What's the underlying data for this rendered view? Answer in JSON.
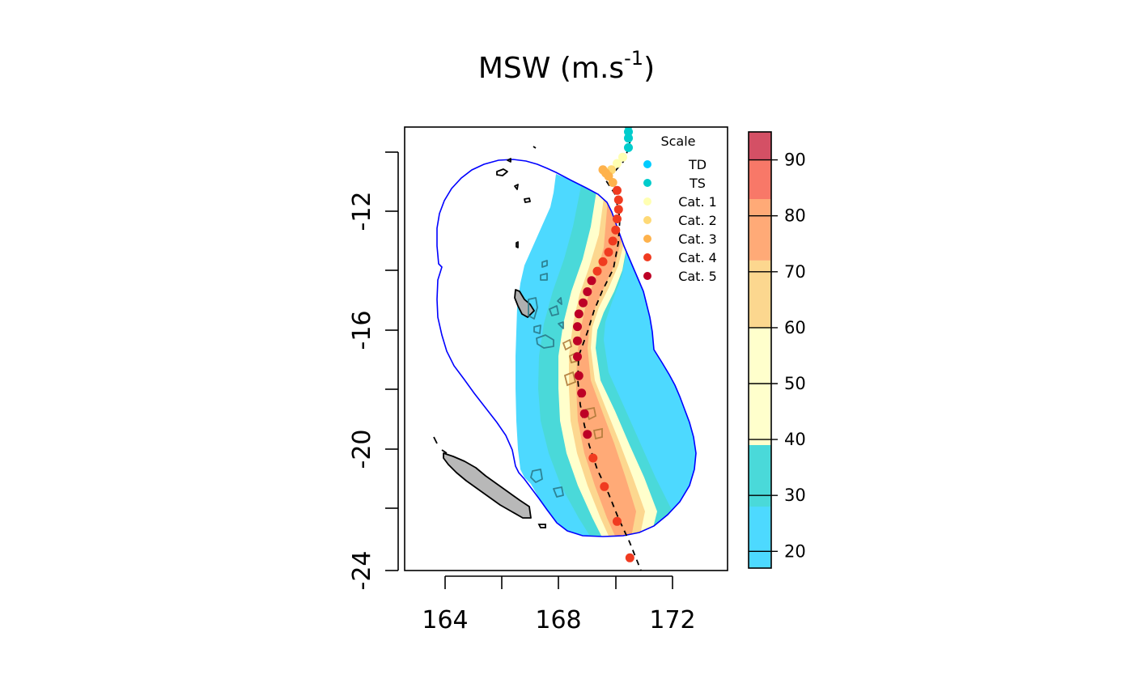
{
  "title": {
    "main": "MSW (m.s",
    "sup": "-1",
    "tail": ")"
  },
  "map": {
    "x_ticks": [
      "164",
      "168",
      "172"
    ],
    "y_ticks": [
      "-12",
      "-16",
      "-20",
      "-24"
    ],
    "xlim": [
      162.6,
      174.0
    ],
    "ylim": [
      -23.95,
      -9.95
    ]
  },
  "legend": {
    "title": "Scale",
    "items": [
      {
        "label": "TD",
        "color": "#00ccff"
      },
      {
        "label": "TS",
        "color": "#00cccc"
      },
      {
        "label": "Cat. 1",
        "color": "#ffffb2"
      },
      {
        "label": "Cat. 2",
        "color": "#fed976"
      },
      {
        "label": "Cat. 3",
        "color": "#feb24c"
      },
      {
        "label": "Cat. 4",
        "color": "#f03b20"
      },
      {
        "label": "Cat. 5",
        "color": "#bd0026"
      }
    ]
  },
  "colorbar": {
    "labels": [
      "20",
      "30",
      "40",
      "50",
      "60",
      "70",
      "80",
      "90"
    ],
    "range": [
      17,
      95
    ],
    "bands": [
      {
        "from": 17,
        "to": 28,
        "color": "#4dd9ff"
      },
      {
        "from": 28,
        "to": 39,
        "color": "#4ad9d9"
      },
      {
        "from": 39,
        "to": 60,
        "color": "#ffffcc"
      },
      {
        "from": 60,
        "to": 72,
        "color": "#fcd78f"
      },
      {
        "from": 72,
        "to": 83,
        "color": "#ffaa77"
      },
      {
        "from": 83,
        "to": 90,
        "color": "#f87868"
      },
      {
        "from": 90,
        "to": 95,
        "color": "#d45065"
      }
    ]
  },
  "track": [
    {
      "lon": 170.5,
      "lat": -9.9,
      "color": "#00cccc"
    },
    {
      "lon": 170.5,
      "lat": -10.1,
      "color": "#00cccc"
    },
    {
      "lon": 170.5,
      "lat": -10.3,
      "color": "#00cccc"
    },
    {
      "lon": 170.5,
      "lat": -10.6,
      "color": "#00cccc"
    },
    {
      "lon": 170.3,
      "lat": -10.9,
      "color": "#ffffb2"
    },
    {
      "lon": 170.1,
      "lat": -11.1,
      "color": "#ffffb2"
    },
    {
      "lon": 169.9,
      "lat": -11.3,
      "color": "#fed976"
    },
    {
      "lon": 169.6,
      "lat": -11.3,
      "color": "#feb24c"
    },
    {
      "lon": 169.7,
      "lat": -11.4,
      "color": "#feb24c"
    },
    {
      "lon": 169.8,
      "lat": -11.5,
      "color": "#feb24c"
    },
    {
      "lon": 169.95,
      "lat": -11.7,
      "color": "#feb24c"
    },
    {
      "lon": 170.1,
      "lat": -11.95,
      "color": "#f03b20"
    },
    {
      "lon": 170.15,
      "lat": -12.25,
      "color": "#f03b20"
    },
    {
      "lon": 170.15,
      "lat": -12.55,
      "color": "#f03b20"
    },
    {
      "lon": 170.1,
      "lat": -12.85,
      "color": "#f03b20"
    },
    {
      "lon": 170.05,
      "lat": -13.2,
      "color": "#f03b20"
    },
    {
      "lon": 169.95,
      "lat": -13.55,
      "color": "#f03b20"
    },
    {
      "lon": 169.8,
      "lat": -13.9,
      "color": "#f03b20"
    },
    {
      "lon": 169.6,
      "lat": -14.2,
      "color": "#f03b20"
    },
    {
      "lon": 169.4,
      "lat": -14.5,
      "color": "#f03b20"
    },
    {
      "lon": 169.2,
      "lat": -14.8,
      "color": "#bd0026"
    },
    {
      "lon": 169.05,
      "lat": -15.15,
      "color": "#bd0026"
    },
    {
      "lon": 168.9,
      "lat": -15.5,
      "color": "#bd0026"
    },
    {
      "lon": 168.75,
      "lat": -15.85,
      "color": "#bd0026"
    },
    {
      "lon": 168.7,
      "lat": -16.25,
      "color": "#bd0026"
    },
    {
      "lon": 168.7,
      "lat": -16.7,
      "color": "#bd0026"
    },
    {
      "lon": 168.7,
      "lat": -17.2,
      "color": "#bd0026"
    },
    {
      "lon": 168.75,
      "lat": -17.8,
      "color": "#bd0026"
    },
    {
      "lon": 168.85,
      "lat": -18.35,
      "color": "#bd0026"
    },
    {
      "lon": 168.95,
      "lat": -19.0,
      "color": "#bd0026"
    },
    {
      "lon": 169.05,
      "lat": -19.65,
      "color": "#bd0026"
    },
    {
      "lon": 169.25,
      "lat": -20.4,
      "color": "#f03b20"
    },
    {
      "lon": 169.65,
      "lat": -21.3,
      "color": "#f03b20"
    },
    {
      "lon": 170.1,
      "lat": -22.4,
      "color": "#f03b20"
    },
    {
      "lon": 170.55,
      "lat": -23.55,
      "color": "#f03b20"
    }
  ]
}
